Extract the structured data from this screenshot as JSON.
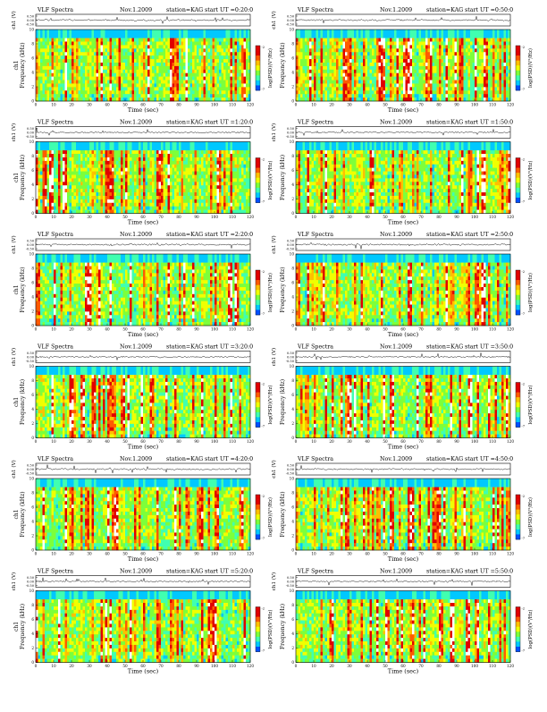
{
  "figure": {
    "header": {
      "left": "VLF Spectra",
      "date": "Nov.1.2009",
      "station": "station=KAG",
      "start_prefix": "start UT ="
    },
    "ylabels": {
      "wave": "ch1 (V)",
      "freq_lines": [
        "ch1",
        "Frequency (kHz)"
      ],
      "freq_right": "Frequency (kHz)"
    },
    "xlabel": "Time (sec)",
    "colorbar_label": "log(PSD)(V²/Hz)",
    "xticks": [
      "0",
      "10",
      "20",
      "30",
      "40",
      "50",
      "60",
      "70",
      "80",
      "90",
      "100",
      "110",
      "120"
    ],
    "yticks_freq": [
      "0",
      "2",
      "4",
      "6",
      "8",
      "10"
    ],
    "wave_ticks": [
      "0.50",
      "0.00",
      "-0.50"
    ],
    "colorbar_ticks": [
      "-2",
      "-7"
    ],
    "colormap": [
      "#0000a0",
      "#0050ff",
      "#00c8ff",
      "#40ffb0",
      "#7dff3a",
      "#f0ff00",
      "#ffc000",
      "#ff5a00",
      "#e00000",
      "#ffffff"
    ]
  },
  "chart_data": [
    {
      "type": "heatmap",
      "start_ut": "0:20:0",
      "xlim": [
        0,
        120
      ],
      "ylim": [
        0,
        10
      ],
      "seed": 11
    },
    {
      "type": "heatmap",
      "start_ut": "0:50:0",
      "xlim": [
        0,
        120
      ],
      "ylim": [
        0,
        10
      ],
      "seed": 23
    },
    {
      "type": "heatmap",
      "start_ut": "1:20:0",
      "xlim": [
        0,
        120
      ],
      "ylim": [
        0,
        10
      ],
      "seed": 37
    },
    {
      "type": "heatmap",
      "start_ut": "1:50:0",
      "xlim": [
        0,
        120
      ],
      "ylim": [
        0,
        10
      ],
      "seed": 41
    },
    {
      "type": "heatmap",
      "start_ut": "2:20:0",
      "xlim": [
        0,
        120
      ],
      "ylim": [
        0,
        10
      ],
      "seed": 53
    },
    {
      "type": "heatmap",
      "start_ut": "2:50:0",
      "xlim": [
        0,
        120
      ],
      "ylim": [
        0,
        10
      ],
      "seed": 67
    },
    {
      "type": "heatmap",
      "start_ut": "3:20:0",
      "xlim": [
        0,
        120
      ],
      "ylim": [
        0,
        10
      ],
      "seed": 71
    },
    {
      "type": "heatmap",
      "start_ut": "3:50:0",
      "xlim": [
        0,
        120
      ],
      "ylim": [
        0,
        10
      ],
      "seed": 83
    },
    {
      "type": "heatmap",
      "start_ut": "4:20:0",
      "xlim": [
        0,
        120
      ],
      "ylim": [
        0,
        10
      ],
      "seed": 97
    },
    {
      "type": "heatmap",
      "start_ut": "4:50:0",
      "xlim": [
        0,
        120
      ],
      "ylim": [
        0,
        10
      ],
      "seed": 101
    },
    {
      "type": "heatmap",
      "start_ut": "5:20:0",
      "xlim": [
        0,
        120
      ],
      "ylim": [
        0,
        10
      ],
      "seed": 113
    },
    {
      "type": "heatmap",
      "start_ut": "5:50:0",
      "xlim": [
        0,
        120
      ],
      "ylim": [
        0,
        10
      ],
      "seed": 127
    }
  ]
}
